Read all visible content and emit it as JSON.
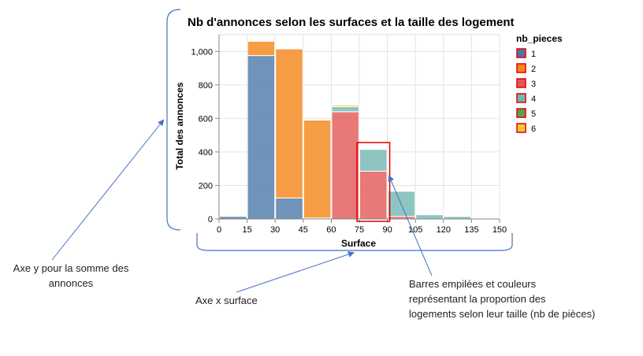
{
  "chart_data": {
    "type": "bar",
    "stacked": true,
    "title": "Nb d'annonces selon les surfaces et la taille des logement",
    "xlabel": "Surface",
    "ylabel": "Total des annonces",
    "x_ticks": [
      "0",
      "15",
      "30",
      "45",
      "60",
      "75",
      "90",
      "105",
      "120",
      "135",
      "150"
    ],
    "y_ticks": [
      "0",
      "200",
      "400",
      "600",
      "800",
      "1,000"
    ],
    "xlim": [
      0,
      150
    ],
    "ylim": [
      0,
      1100
    ],
    "grid": true,
    "legend_title": "nb_pieces",
    "legend_placement": "right",
    "bins": [
      [
        0,
        15
      ],
      [
        15,
        30
      ],
      [
        30,
        45
      ],
      [
        45,
        60
      ],
      [
        60,
        75
      ],
      [
        75,
        90
      ],
      [
        90,
        105
      ],
      [
        105,
        120
      ],
      [
        120,
        135
      ],
      [
        135,
        150
      ]
    ],
    "series": [
      {
        "name": "1",
        "color": "#4c78a8",
        "values": [
          15,
          975,
          125,
          5,
          0,
          0,
          0,
          0,
          0,
          0
        ]
      },
      {
        "name": "2",
        "color": "#f58518",
        "values": [
          0,
          85,
          890,
          585,
          0,
          0,
          0,
          0,
          0,
          0
        ]
      },
      {
        "name": "3",
        "color": "#e45756",
        "values": [
          0,
          0,
          0,
          0,
          640,
          285,
          15,
          0,
          0,
          0
        ]
      },
      {
        "name": "4",
        "color": "#72b7b2",
        "values": [
          0,
          0,
          0,
          0,
          30,
          130,
          150,
          25,
          15,
          5
        ]
      },
      {
        "name": "5",
        "color": "#54a24b",
        "values": [
          0,
          0,
          0,
          0,
          0,
          0,
          0,
          0,
          0,
          0
        ]
      },
      {
        "name": "6",
        "color": "#eeca3b",
        "values": [
          0,
          0,
          0,
          0,
          10,
          0,
          0,
          0,
          0,
          5
        ]
      }
    ]
  },
  "annotations": {
    "y_axis_note": "Axe y pour la somme des annonces",
    "x_axis_note": "Axe x surface",
    "bars_note_lines": [
      "Barres empilées et couleurs",
      "représentant la proportion des",
      "logements selon leur taille (nb de pièces)"
    ]
  },
  "highlight_color": "#e00000",
  "annotation_color": "#4472c4"
}
